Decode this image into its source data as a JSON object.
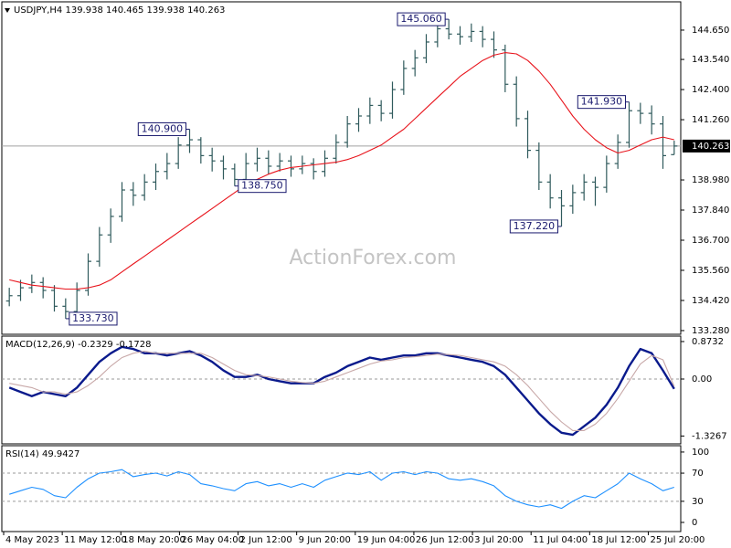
{
  "chart_data": [
    {
      "type": "ohlc",
      "title": "USDJPY,H4  139.938 140.465 139.938 140.263",
      "watermark": "ActionForex.com",
      "color": "#2f5a5c",
      "open": [
        134.4,
        134.6,
        134.9,
        135.1,
        134.8,
        134.2,
        134.0,
        134.8,
        135.9,
        136.9,
        137.6,
        138.6,
        138.4,
        138.9,
        139.3,
        139.6,
        140.3,
        140.5,
        139.9,
        139.7,
        139.4,
        139.0,
        139.6,
        139.8,
        139.5,
        139.7,
        139.4,
        139.6,
        139.3,
        139.8,
        140.4,
        141.1,
        141.4,
        141.8,
        141.5,
        142.4,
        143.2,
        143.6,
        144.2,
        144.7,
        144.5,
        144.4,
        144.6,
        144.3,
        143.9,
        142.6,
        141.3,
        140.1,
        138.9,
        138.3,
        138.0,
        138.5,
        138.9,
        138.7,
        139.6,
        140.4,
        141.6,
        141.5,
        141.1,
        139.938
      ],
      "high": [
        134.9,
        135.2,
        135.4,
        135.3,
        135.0,
        134.5,
        135.1,
        136.2,
        137.2,
        137.9,
        138.9,
        138.9,
        139.2,
        139.6,
        140.0,
        140.6,
        140.9,
        140.6,
        140.2,
        139.9,
        139.6,
        140.0,
        140.2,
        140.1,
        140.0,
        139.9,
        139.9,
        139.8,
        140.1,
        140.7,
        141.4,
        141.7,
        142.1,
        142.0,
        142.7,
        143.5,
        143.9,
        144.5,
        144.9,
        145.06,
        144.8,
        144.9,
        144.8,
        144.6,
        144.1,
        142.9,
        141.6,
        140.4,
        139.2,
        138.6,
        138.8,
        139.2,
        139.1,
        139.9,
        140.7,
        141.93,
        141.9,
        141.8,
        141.4,
        140.465
      ],
      "low": [
        134.2,
        134.4,
        134.7,
        134.5,
        134.0,
        133.73,
        133.9,
        134.6,
        135.7,
        136.6,
        137.4,
        138.0,
        138.2,
        138.6,
        139.0,
        139.4,
        140.0,
        139.6,
        139.3,
        139.0,
        138.75,
        138.9,
        139.3,
        139.2,
        139.3,
        139.1,
        139.2,
        139.0,
        139.1,
        139.6,
        140.2,
        140.8,
        141.1,
        141.2,
        141.3,
        142.2,
        142.9,
        143.4,
        144.0,
        144.3,
        144.1,
        144.2,
        144.0,
        143.6,
        142.3,
        141.0,
        139.8,
        138.6,
        137.9,
        137.22,
        137.7,
        138.2,
        138.0,
        138.5,
        139.4,
        140.2,
        141.1,
        140.7,
        139.4,
        139.938
      ],
      "close": [
        134.6,
        134.9,
        135.1,
        134.8,
        134.2,
        134.0,
        134.8,
        135.9,
        136.9,
        137.6,
        138.6,
        138.4,
        138.9,
        139.3,
        139.6,
        140.3,
        140.5,
        139.9,
        139.7,
        139.4,
        139.0,
        139.6,
        139.8,
        139.5,
        139.7,
        139.4,
        139.6,
        139.3,
        139.8,
        140.4,
        141.1,
        141.4,
        141.8,
        141.5,
        142.4,
        143.2,
        143.6,
        144.2,
        144.7,
        144.5,
        144.4,
        144.6,
        144.3,
        143.9,
        142.6,
        141.3,
        140.1,
        138.9,
        138.3,
        138.0,
        138.5,
        138.9,
        138.7,
        139.6,
        140.4,
        141.6,
        141.5,
        141.1,
        139.9,
        140.263
      ],
      "series": [
        {
          "color": "#e8141c",
          "values": [
            135.2,
            135.1,
            135.0,
            134.95,
            134.9,
            134.85,
            134.85,
            134.9,
            135.0,
            135.2,
            135.5,
            135.8,
            136.1,
            136.4,
            136.7,
            137.0,
            137.3,
            137.6,
            137.9,
            138.2,
            138.5,
            138.8,
            139.0,
            139.2,
            139.35,
            139.45,
            139.5,
            139.55,
            139.6,
            139.65,
            139.75,
            139.9,
            140.1,
            140.3,
            140.6,
            140.9,
            141.3,
            141.7,
            142.1,
            142.5,
            142.9,
            143.2,
            143.5,
            143.7,
            143.8,
            143.75,
            143.5,
            143.1,
            142.6,
            142.0,
            141.4,
            140.9,
            140.5,
            140.2,
            140.0,
            140.1,
            140.3,
            140.5,
            140.6,
            140.5
          ]
        }
      ],
      "annotations": [
        "145.060",
        "140.900",
        "138.750",
        "137.220",
        "141.930",
        "133.730"
      ],
      "last": {
        "value": 140.263,
        "label": "140.263"
      },
      "ylim": [
        133.14,
        145.72
      ],
      "yticks": [
        {
          "value": 144.65,
          "label": "144.650"
        },
        {
          "value": 143.54,
          "label": "143.540"
        },
        {
          "value": 142.4,
          "label": "142.400"
        },
        {
          "value": 141.26,
          "label": "141.260"
        },
        {
          "value": 138.98,
          "label": "138.980"
        },
        {
          "value": 137.84,
          "label": "137.840"
        },
        {
          "value": 136.7,
          "label": "136.700"
        },
        {
          "value": 135.56,
          "label": "135.560"
        },
        {
          "value": 134.42,
          "label": "134.420"
        },
        {
          "value": 133.28,
          "label": "133.280"
        }
      ]
    },
    {
      "type": "line",
      "title": "MACD(12,26,9) -0.2329 -0.1728",
      "series": [
        {
          "color": "#0a1a8c",
          "values": [
            -0.2,
            -0.3,
            -0.4,
            -0.3,
            -0.35,
            -0.4,
            -0.2,
            0.1,
            0.4,
            0.6,
            0.75,
            0.7,
            0.6,
            0.6,
            0.55,
            0.6,
            0.65,
            0.55,
            0.4,
            0.2,
            0.05,
            0.05,
            0.1,
            0.0,
            -0.05,
            -0.1,
            -0.1,
            -0.1,
            0.05,
            0.15,
            0.3,
            0.4,
            0.5,
            0.45,
            0.5,
            0.55,
            0.55,
            0.6,
            0.6,
            0.55,
            0.5,
            0.45,
            0.4,
            0.3,
            0.1,
            -0.2,
            -0.5,
            -0.8,
            -1.05,
            -1.25,
            -1.3,
            -1.1,
            -0.9,
            -0.6,
            -0.2,
            0.3,
            0.7,
            0.6,
            0.2,
            -0.23
          ]
        },
        {
          "color": "#c8a8a8",
          "values": [
            -0.1,
            -0.15,
            -0.2,
            -0.3,
            -0.3,
            -0.35,
            -0.3,
            -0.15,
            0.05,
            0.3,
            0.5,
            0.6,
            0.65,
            0.6,
            0.6,
            0.6,
            0.6,
            0.6,
            0.5,
            0.35,
            0.2,
            0.1,
            0.08,
            0.05,
            0.0,
            -0.05,
            -0.08,
            -0.1,
            -0.05,
            0.05,
            0.15,
            0.25,
            0.35,
            0.42,
            0.45,
            0.5,
            0.52,
            0.55,
            0.58,
            0.57,
            0.55,
            0.5,
            0.45,
            0.4,
            0.3,
            0.1,
            -0.15,
            -0.45,
            -0.75,
            -1.0,
            -1.2,
            -1.2,
            -1.05,
            -0.8,
            -0.45,
            -0.05,
            0.35,
            0.55,
            0.45,
            -0.17
          ]
        }
      ],
      "levels": [
        0
      ],
      "ylim": [
        -1.51,
        1.0
      ],
      "yticks": [
        0.8732,
        {
          "value": 0,
          "label": "0.00"
        },
        -1.3267
      ]
    },
    {
      "type": "line",
      "title": "RSI(14) 49.9427",
      "series": [
        {
          "color": "#1e90ff",
          "values": [
            40,
            45,
            50,
            47,
            38,
            35,
            50,
            62,
            70,
            72,
            75,
            65,
            68,
            70,
            66,
            72,
            68,
            55,
            52,
            48,
            45,
            55,
            58,
            52,
            55,
            50,
            55,
            50,
            60,
            65,
            70,
            68,
            72,
            60,
            70,
            72,
            68,
            72,
            70,
            62,
            60,
            62,
            58,
            52,
            38,
            30,
            25,
            22,
            25,
            20,
            30,
            38,
            35,
            45,
            55,
            70,
            62,
            55,
            45,
            49.94
          ]
        }
      ],
      "levels": [
        70,
        30
      ],
      "ylim": [
        -13,
        109
      ],
      "yticks": [
        100,
        70,
        30,
        0
      ],
      "xlim": [
        -0.5,
        59.5
      ],
      "xticks": [
        {
          "value": -0.5,
          "label": "4 May 2023"
        },
        {
          "value": 4.7,
          "label": "11 May 12:00"
        },
        {
          "value": 9.9,
          "label": "18 May 20:00"
        },
        {
          "value": 15.1,
          "label": "26 May 04:00"
        },
        {
          "value": 20.3,
          "label": "2 Jun 12:00"
        },
        {
          "value": 25.5,
          "label": "9 Jun 20:00"
        },
        {
          "value": 30.7,
          "label": "19 Jun 04:00"
        },
        {
          "value": 35.9,
          "label": "26 Jun 12:00"
        },
        {
          "value": 41.1,
          "label": "3 Jul 20:00"
        },
        {
          "value": 46.3,
          "label": "11 Jul 04:00"
        },
        {
          "value": 51.5,
          "label": "18 Jul 12:00"
        },
        {
          "value": 56.7,
          "label": "25 Jul 20:00"
        }
      ]
    }
  ]
}
